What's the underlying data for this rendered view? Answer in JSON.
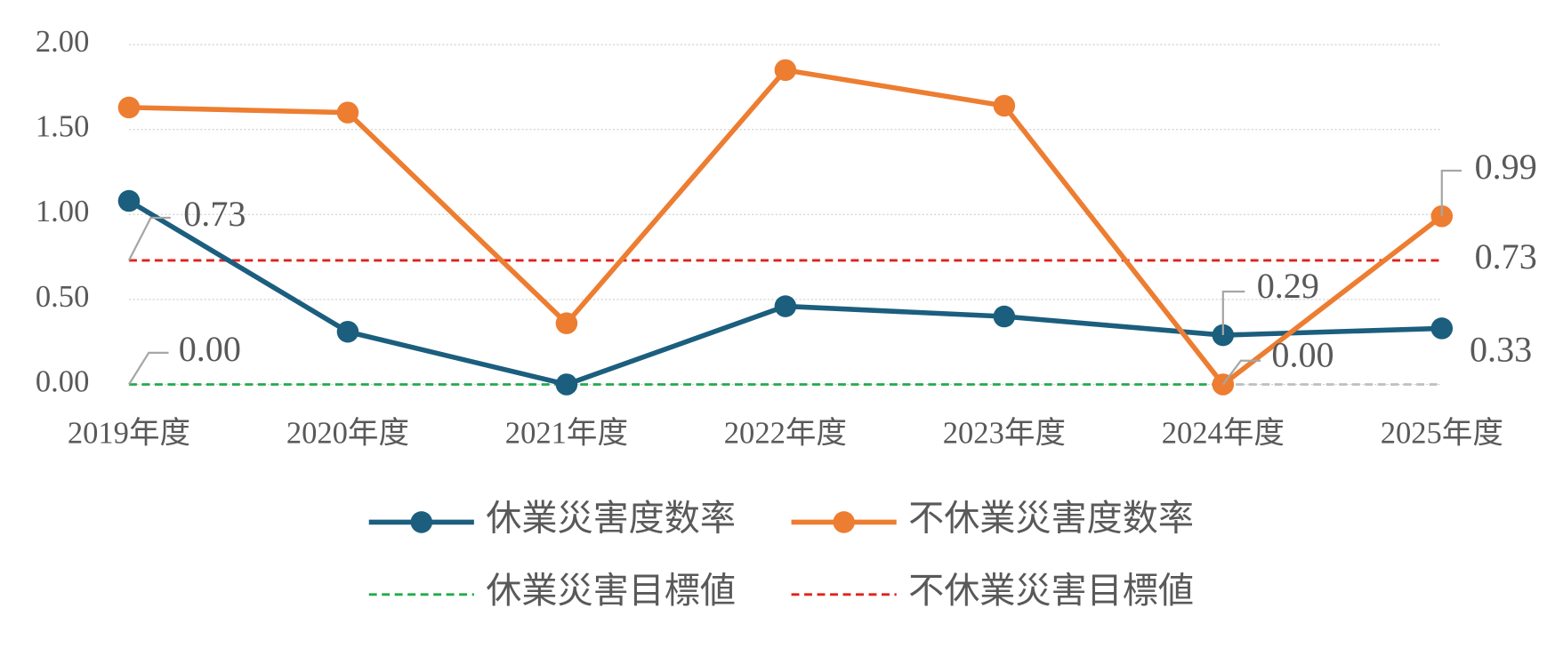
{
  "chart_data": {
    "type": "line",
    "categories": [
      "2019年度",
      "2020年度",
      "2021年度",
      "2022年度",
      "2023年度",
      "2024年度",
      "2025年度"
    ],
    "ylim": [
      0,
      2
    ],
    "yticks": [
      {
        "value": 0,
        "label": "0.00"
      },
      {
        "value": 0.5,
        "label": "0.50"
      },
      {
        "value": 1,
        "label": "1.00"
      },
      {
        "value": 1.5,
        "label": "1.50"
      },
      {
        "value": 2,
        "label": "2.00"
      }
    ],
    "grid": true,
    "legend": "bottom",
    "series": [
      {
        "name": "休業災害度数率",
        "color": "#1b5e7e",
        "style": "solid",
        "markers": true,
        "values": [
          1.08,
          0.31,
          0.0,
          0.46,
          0.4,
          0.29,
          0.33
        ],
        "value_labels": [
          null,
          null,
          null,
          null,
          null,
          "0.29",
          "0.33"
        ]
      },
      {
        "name": "不休業災害度数率",
        "color": "#ed7d31",
        "style": "solid",
        "markers": true,
        "values": [
          1.63,
          1.6,
          0.36,
          1.85,
          1.64,
          0.0,
          0.99
        ],
        "value_labels": [
          null,
          null,
          null,
          null,
          null,
          "0.00",
          "0.99"
        ]
      },
      {
        "name": "休業災害目標値",
        "color": "#22aa4a",
        "style": "dashed",
        "markers": false,
        "last_segment_color": "#bfbfbf",
        "values": [
          0,
          0,
          0,
          0,
          0,
          0,
          0
        ],
        "value_labels": [
          "0.00",
          null,
          null,
          null,
          null,
          null,
          null
        ]
      },
      {
        "name": "不休業災害目標値",
        "color": "#e0211d",
        "style": "dashed",
        "markers": false,
        "values": [
          0.73,
          0.73,
          0.73,
          0.73,
          0.73,
          0.73,
          0.73
        ],
        "value_labels": [
          "0.73",
          null,
          null,
          null,
          null,
          null,
          "0.73"
        ]
      }
    ]
  }
}
